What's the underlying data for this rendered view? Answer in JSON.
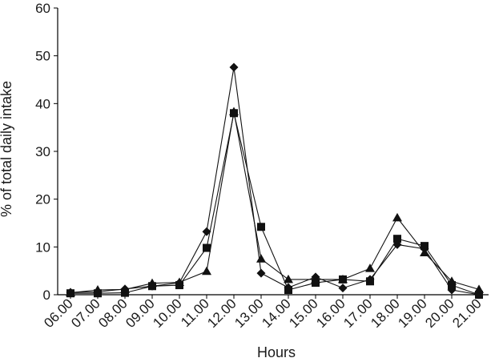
{
  "chart_data": {
    "type": "line",
    "title": "",
    "xlabel": "Hours",
    "ylabel": "% of total daily intake",
    "categories": [
      "06.00",
      "07.00",
      "08.00",
      "09.00",
      "10.00",
      "11.00",
      "12.00",
      "13.00",
      "14.00",
      "15.00",
      "16.00",
      "17.00",
      "18.00",
      "19.00",
      "20.00",
      "21.00"
    ],
    "y_ticks": [
      "0",
      "10",
      "20",
      "30",
      "40",
      "50",
      "60"
    ],
    "ylim": [
      0,
      60
    ],
    "grid": false,
    "legend": "none",
    "series": [
      {
        "marker": "diamond",
        "color": "#111111",
        "values": [
          0.5,
          0.6,
          1.2,
          1.8,
          2.5,
          13.2,
          47.6,
          4.5,
          1.5,
          3.7,
          1.4,
          3.2,
          10.5,
          9.6,
          1.0,
          0.0
        ]
      },
      {
        "marker": "square",
        "color": "#111111",
        "values": [
          0.3,
          0.3,
          0.4,
          1.8,
          2.0,
          9.8,
          38.0,
          14.2,
          1.0,
          2.5,
          3.2,
          2.8,
          11.7,
          10.2,
          2.0,
          0.0
        ]
      },
      {
        "marker": "triangle",
        "color": "#111111",
        "values": [
          0.4,
          1.0,
          1.1,
          2.4,
          2.6,
          4.9,
          38.3,
          7.5,
          3.2,
          3.2,
          3.2,
          5.5,
          16.1,
          8.8,
          2.8,
          1.1
        ]
      }
    ]
  }
}
